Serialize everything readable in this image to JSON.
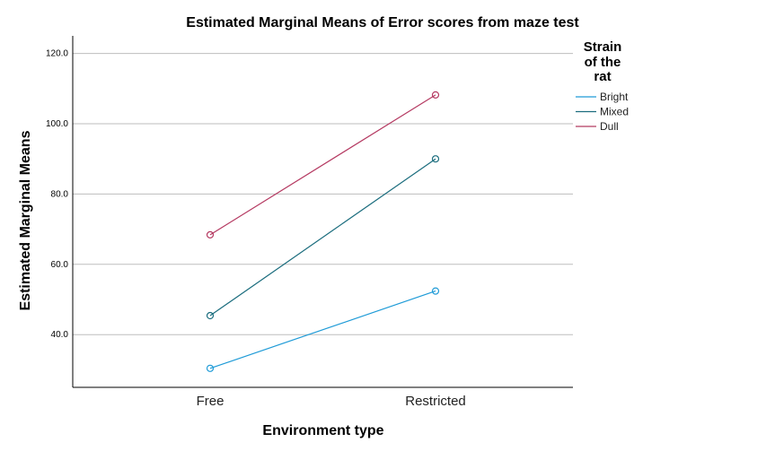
{
  "chart_data": {
    "type": "line",
    "title": "Estimated Marginal Means of Error scores from maze test",
    "xlabel": "Environment type",
    "ylabel": "Estimated Marginal Means",
    "categories": [
      "Free",
      "Restricted"
    ],
    "ylim": [
      25,
      125
    ],
    "yticks": [
      40,
      60,
      80,
      100,
      120
    ],
    "ytick_labels": [
      "40.0",
      "60.0",
      "80.0",
      "100.0",
      "120.0"
    ],
    "grid": true,
    "legend": {
      "title_lines": [
        "Strain",
        "of the",
        "rat"
      ],
      "placement": "right"
    },
    "series": [
      {
        "name": "Bright",
        "color": "#1f9bd7",
        "values": [
          30.4,
          52.4
        ]
      },
      {
        "name": "Mixed",
        "color": "#1b6d7e",
        "values": [
          45.4,
          90.0
        ]
      },
      {
        "name": "Dull",
        "color": "#b53a62",
        "values": [
          68.4,
          108.2
        ]
      }
    ]
  }
}
